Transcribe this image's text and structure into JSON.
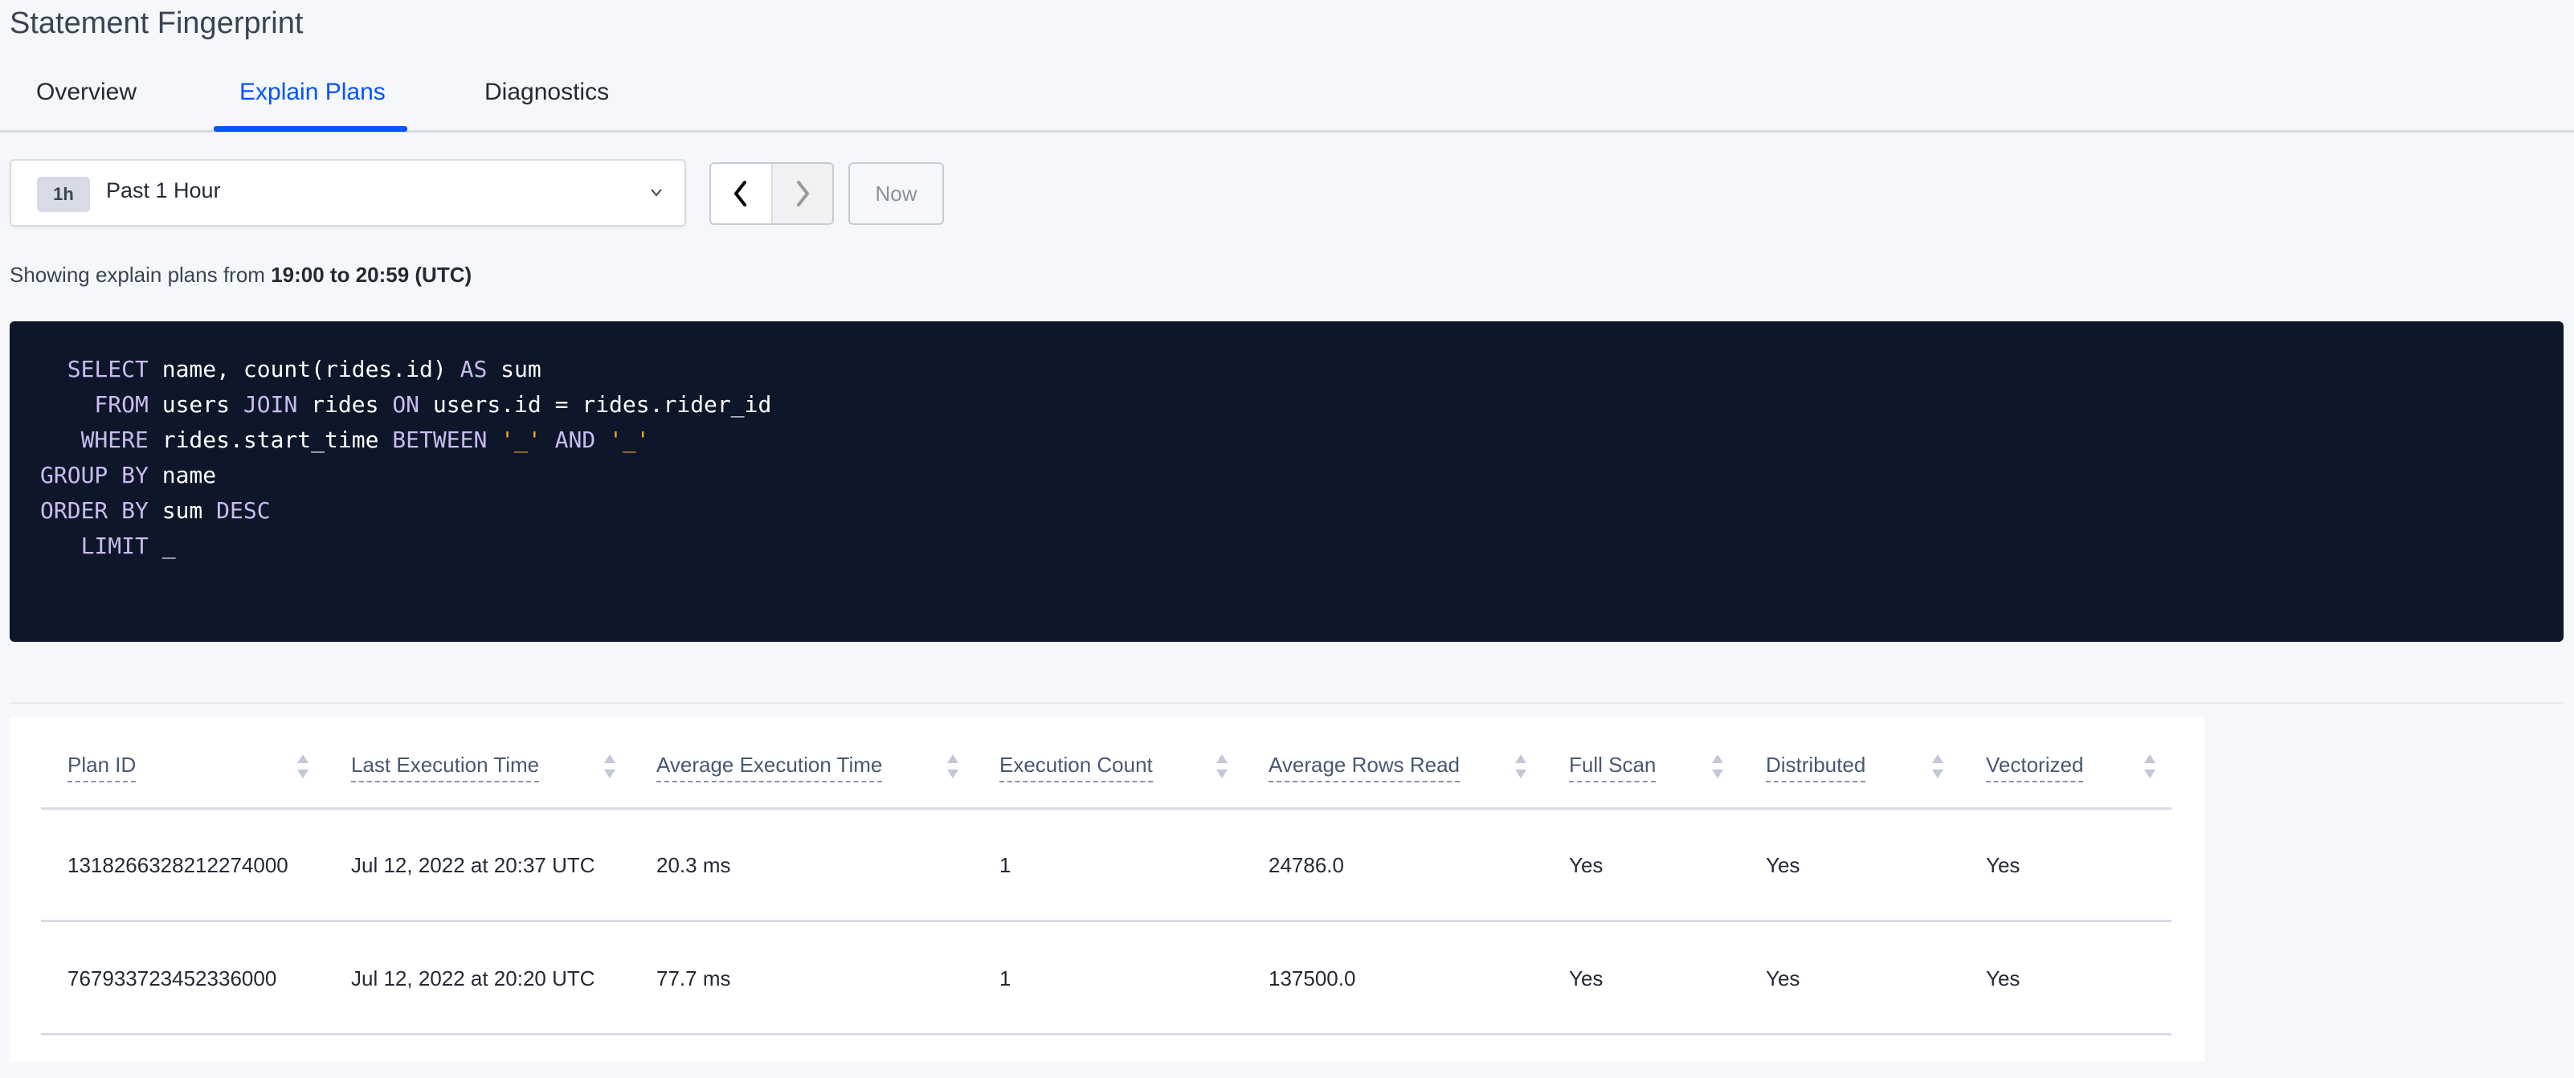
{
  "page": {
    "title": "Statement Fingerprint"
  },
  "tabs": [
    {
      "label": "Overview",
      "active": false
    },
    {
      "label": "Explain Plans",
      "active": true
    },
    {
      "label": "Diagnostics",
      "active": false
    }
  ],
  "time_range": {
    "badge": "1h",
    "label": "Past 1 Hour",
    "now_label": "Now"
  },
  "showing": {
    "prefix": "Showing explain plans from ",
    "range": "19:00 to 20:59 (UTC)"
  },
  "colors": {
    "accent": "#0055ff",
    "code_bg": "#0e1629",
    "keyword": "#c9bbf0",
    "string": "#f5a623"
  },
  "code": {
    "lines": [
      [
        {
          "t": "k",
          "v": "  SELECT"
        },
        {
          "t": "t",
          "v": " name, count(rides.id) "
        },
        {
          "t": "k",
          "v": "AS"
        },
        {
          "t": "t",
          "v": " sum"
        }
      ],
      [
        {
          "t": "k",
          "v": "    FROM"
        },
        {
          "t": "t",
          "v": " users "
        },
        {
          "t": "k",
          "v": "JOIN"
        },
        {
          "t": "t",
          "v": " rides "
        },
        {
          "t": "k",
          "v": "ON"
        },
        {
          "t": "t",
          "v": " users.id = rides.rider_id"
        }
      ],
      [
        {
          "t": "k",
          "v": "   WHERE"
        },
        {
          "t": "t",
          "v": " rides.start_time "
        },
        {
          "t": "k",
          "v": "BETWEEN"
        },
        {
          "t": "t",
          "v": " "
        },
        {
          "t": "s",
          "v": "'_'"
        },
        {
          "t": "t",
          "v": " "
        },
        {
          "t": "k",
          "v": "AND"
        },
        {
          "t": "t",
          "v": " "
        },
        {
          "t": "s",
          "v": "'_'"
        }
      ],
      [
        {
          "t": "k",
          "v": "GROUP BY"
        },
        {
          "t": "t",
          "v": " name"
        }
      ],
      [
        {
          "t": "k",
          "v": "ORDER BY"
        },
        {
          "t": "t",
          "v": " sum "
        },
        {
          "t": "k",
          "v": "DESC"
        }
      ],
      [
        {
          "t": "k",
          "v": "   LIMIT"
        },
        {
          "t": "t",
          "v": " _"
        }
      ]
    ]
  },
  "table": {
    "columns": [
      "Plan ID",
      "Last Execution Time",
      "Average Execution Time",
      "Execution Count",
      "Average Rows Read",
      "Full Scan",
      "Distributed",
      "Vectorized"
    ],
    "rows": [
      [
        "1318266328212274000",
        "Jul 12, 2022 at 20:37 UTC",
        "20.3 ms",
        "1",
        "24786.0",
        "Yes",
        "Yes",
        "Yes"
      ],
      [
        "767933723452336000",
        "Jul 12, 2022 at 20:20 UTC",
        "77.7 ms",
        "1",
        "137500.0",
        "Yes",
        "Yes",
        "Yes"
      ]
    ]
  }
}
